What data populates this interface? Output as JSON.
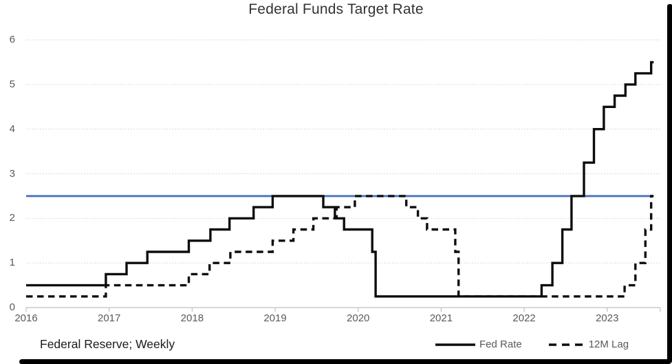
{
  "chart_data": {
    "type": "line",
    "title": "Federal Funds Target Rate",
    "caption": "Federal Reserve; Weekly",
    "xlabel": "",
    "ylabel": "",
    "x_ticks": [
      2016,
      2017,
      2018,
      2019,
      2020,
      2021,
      2022,
      2023
    ],
    "y_ticks": [
      0,
      1,
      2,
      3,
      4,
      5,
      6
    ],
    "x_range": [
      2016,
      2023.64
    ],
    "y_range": [
      0,
      6
    ],
    "grid": "horizontal-dotted",
    "grid_color": "#d9d9d9",
    "axis_color": "#bfbfbf",
    "legend_position": "bottom-right",
    "reference_line": {
      "value": 2.5,
      "color": "#4472C4",
      "x_end": 2023.55
    },
    "series": [
      {
        "name": "Fed Rate",
        "style": "solid",
        "color": "#0d0d0d",
        "x_end": 2023.56,
        "steps": [
          [
            2016.0,
            0.5
          ],
          [
            2016.96,
            0.75
          ],
          [
            2017.21,
            1.0
          ],
          [
            2017.46,
            1.25
          ],
          [
            2017.96,
            1.5
          ],
          [
            2018.22,
            1.75
          ],
          [
            2018.45,
            2.0
          ],
          [
            2018.74,
            2.25
          ],
          [
            2018.97,
            2.5
          ],
          [
            2019.58,
            2.25
          ],
          [
            2019.72,
            2.0
          ],
          [
            2019.83,
            1.75
          ],
          [
            2020.17,
            1.25
          ],
          [
            2020.21,
            0.25
          ],
          [
            2022.21,
            0.5
          ],
          [
            2022.34,
            1.0
          ],
          [
            2022.46,
            1.75
          ],
          [
            2022.57,
            2.5
          ],
          [
            2022.72,
            3.25
          ],
          [
            2022.84,
            4.0
          ],
          [
            2022.96,
            4.5
          ],
          [
            2023.09,
            4.75
          ],
          [
            2023.22,
            5.0
          ],
          [
            2023.34,
            5.25
          ],
          [
            2023.53,
            5.5
          ]
        ]
      },
      {
        "name": "12M Lag",
        "style": "dashed",
        "color": "#0d0d0d",
        "x_end": 2023.56,
        "steps": [
          [
            2016.0,
            0.25
          ],
          [
            2016.96,
            0.5
          ],
          [
            2017.96,
            0.75
          ],
          [
            2018.21,
            1.0
          ],
          [
            2018.46,
            1.25
          ],
          [
            2018.97,
            1.5
          ],
          [
            2019.22,
            1.75
          ],
          [
            2019.46,
            2.0
          ],
          [
            2019.74,
            2.25
          ],
          [
            2019.96,
            2.5
          ],
          [
            2020.58,
            2.25
          ],
          [
            2020.72,
            2.0
          ],
          [
            2020.83,
            1.75
          ],
          [
            2021.17,
            1.25
          ],
          [
            2021.21,
            0.25
          ],
          [
            2023.21,
            0.5
          ],
          [
            2023.34,
            1.0
          ],
          [
            2023.46,
            1.75
          ],
          [
            2023.53,
            2.5
          ]
        ]
      }
    ],
    "legend": [
      {
        "label": "Fed Rate",
        "swatch": "solid-line"
      },
      {
        "label": "12M Lag",
        "swatch": "dashed-line"
      }
    ]
  }
}
